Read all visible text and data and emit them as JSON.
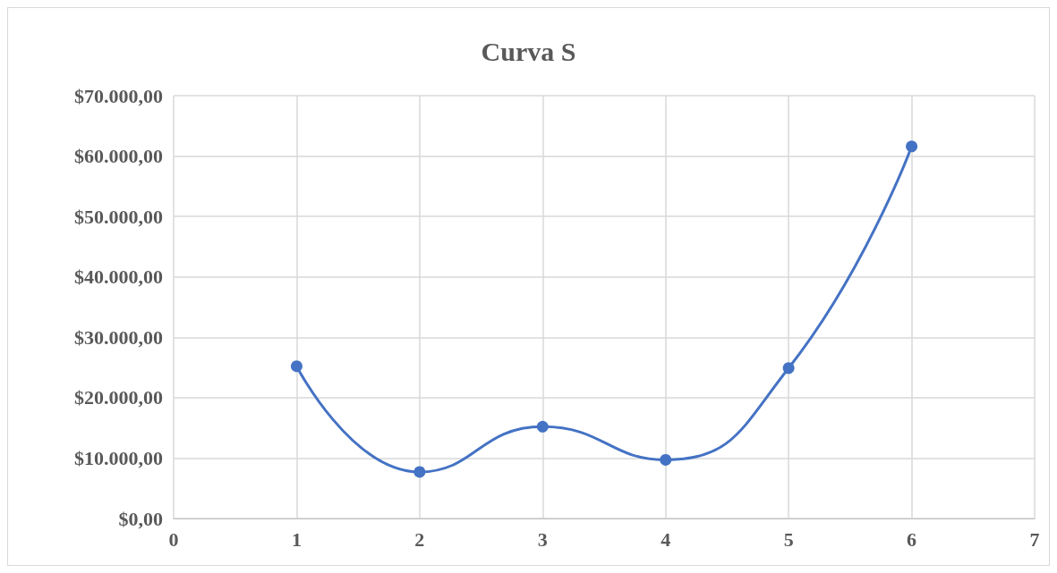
{
  "chart_data": {
    "type": "line",
    "title": "Curva S",
    "x": [
      1,
      2,
      3,
      4,
      5,
      6
    ],
    "series": [
      {
        "color": "#4472c4",
        "values": [
          25200,
          7700,
          15200,
          9700,
          24900,
          61600
        ]
      }
    ],
    "xlim": [
      0,
      7
    ],
    "xticks": [
      0,
      1,
      2,
      3,
      4,
      5,
      6,
      7
    ],
    "ylim": [
      0,
      70000
    ],
    "yticks": [
      {
        "value": 0,
        "label": "$0,00"
      },
      {
        "value": 10000,
        "label": "$10.000,00"
      },
      {
        "value": 20000,
        "label": "$20.000,00"
      },
      {
        "value": 30000,
        "label": "$30.000,00"
      },
      {
        "value": 40000,
        "label": "$40.000,00"
      },
      {
        "value": 50000,
        "label": "$50.000,00"
      },
      {
        "value": 60000,
        "label": "$60.000,00"
      },
      {
        "value": 70000,
        "label": "$70.000,00"
      }
    ],
    "grid": true,
    "marker": "circle",
    "line_style": "solid"
  }
}
